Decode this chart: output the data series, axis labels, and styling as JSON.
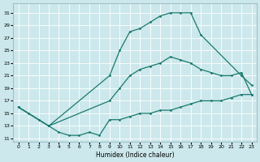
{
  "xlabel": "Humidex (Indice chaleur)",
  "bg_color": "#cce8ec",
  "grid_color": "#c8e0e4",
  "line_color": "#1a7a6e",
  "xlim": [
    -0.5,
    23.5
  ],
  "ylim": [
    10.5,
    32.5
  ],
  "xticks": [
    0,
    1,
    2,
    3,
    4,
    5,
    6,
    7,
    8,
    9,
    10,
    11,
    12,
    13,
    14,
    15,
    16,
    17,
    18,
    19,
    20,
    21,
    22,
    23
  ],
  "yticks": [
    11,
    13,
    15,
    17,
    19,
    21,
    23,
    25,
    27,
    29,
    31
  ],
  "curve_top_x": [
    0,
    3,
    9,
    10,
    11,
    12,
    13,
    14,
    15,
    16,
    17,
    18,
    22,
    23
  ],
  "curve_top_y": [
    16,
    13,
    21,
    25,
    28,
    28.5,
    29.5,
    30.5,
    31,
    31,
    31,
    27.5,
    21,
    19.5
  ],
  "curve_mid_x": [
    0,
    3,
    9,
    10,
    11,
    12,
    13,
    14,
    15,
    16,
    17,
    18,
    19,
    20,
    21,
    22,
    23
  ],
  "curve_mid_y": [
    16,
    13,
    17,
    19,
    21,
    22,
    22.5,
    23,
    24,
    23.5,
    23,
    22,
    21.5,
    21,
    21,
    21.5,
    18
  ],
  "curve_bot_x": [
    0,
    1,
    2,
    3,
    4,
    5,
    6,
    7,
    8,
    9,
    10,
    11,
    12,
    13,
    14,
    15,
    16,
    17,
    18,
    19,
    20,
    21,
    22,
    23
  ],
  "curve_bot_y": [
    16,
    15,
    14,
    13,
    12,
    11.5,
    11.5,
    12,
    11.5,
    14,
    14,
    14.5,
    15,
    15,
    15.5,
    15.5,
    16,
    16.5,
    17,
    17,
    17,
    17.5,
    18,
    18
  ]
}
